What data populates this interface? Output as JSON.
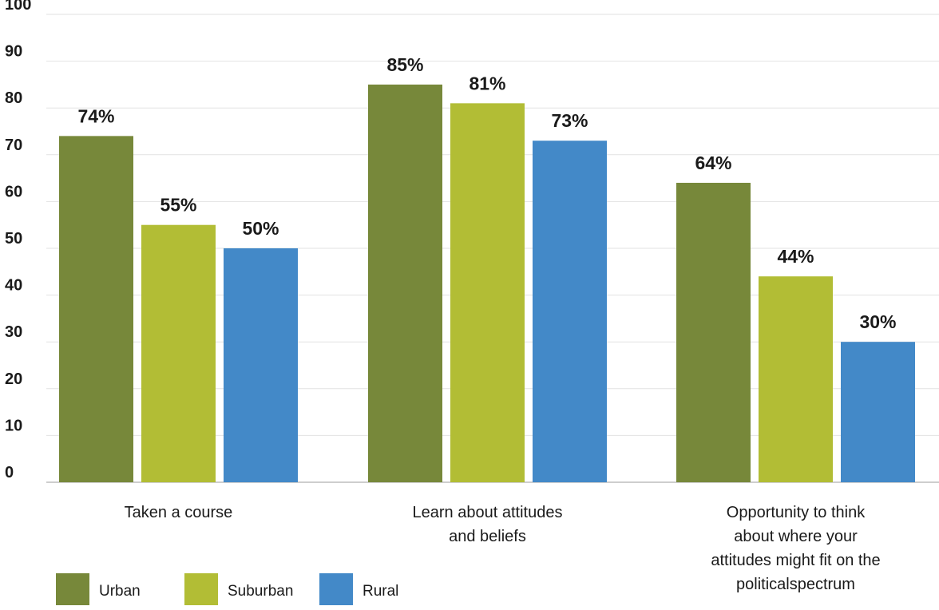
{
  "chart_data": {
    "type": "bar",
    "categories": [
      "Taken a course",
      "Learn about attitudes and beliefs",
      "Opportunity to think about where your attitudes might fit on the politicalspectrum"
    ],
    "category_lines": [
      [
        "Taken a course"
      ],
      [
        "Learn about attitudes",
        "and beliefs"
      ],
      [
        "Opportunity to think",
        "about where your",
        "attitudes might fit on the",
        "politicalspectrum"
      ]
    ],
    "series": [
      {
        "name": "Urban",
        "color": "#77883a",
        "values": [
          74,
          85,
          64
        ],
        "labels": [
          "74%",
          "85%",
          "64%"
        ]
      },
      {
        "name": "Suburban",
        "color": "#b2bd35",
        "values": [
          55,
          81,
          44
        ],
        "labels": [
          "55%",
          "81%",
          "44%"
        ]
      },
      {
        "name": "Rural",
        "color": "#4389c8",
        "values": [
          50,
          73,
          30
        ],
        "labels": [
          "50%",
          "73%",
          "30%"
        ]
      }
    ],
    "yticks": [
      "0",
      "10",
      "20",
      "30",
      "40",
      "50",
      "60",
      "70",
      "80",
      "90",
      "100"
    ],
    "ylim": [
      0,
      100
    ],
    "title": "",
    "xlabel": "",
    "ylabel": "",
    "grid": true,
    "legend_position": "bottom-left"
  }
}
